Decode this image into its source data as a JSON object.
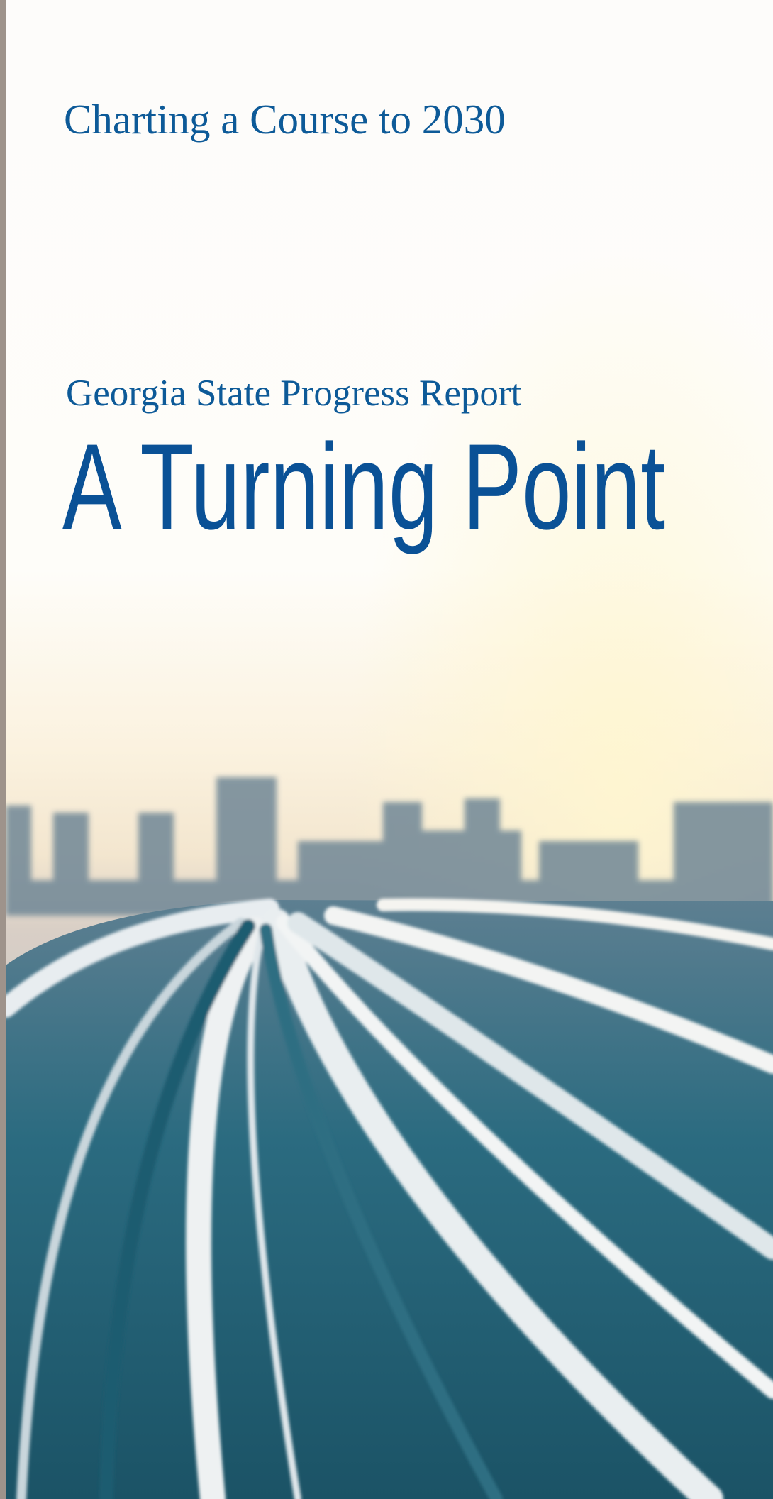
{
  "cover": {
    "tagline": "Charting a Course to 2030",
    "subtitle": "Georgia State Progress Report",
    "title": "A Turning Point"
  }
}
